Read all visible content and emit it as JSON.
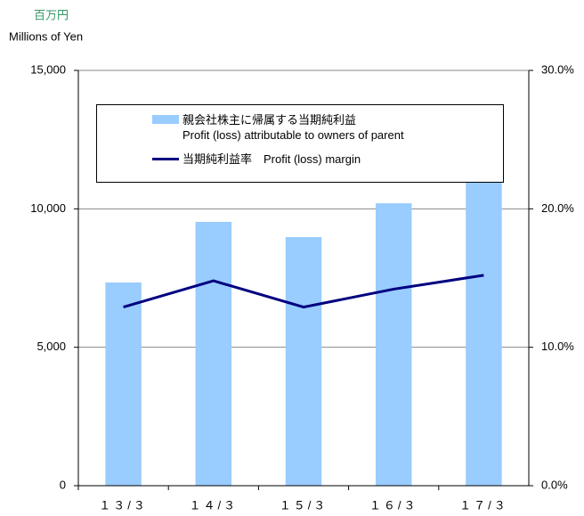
{
  "chart_data": {
    "type": "bar_line",
    "unit_label_ja": "百万円",
    "unit_label_en": "Millions of Yen",
    "categories": [
      "１３/３",
      "１４/３",
      "１５/３",
      "１６/３",
      "１７/３"
    ],
    "series": [
      {
        "name": "親会社株主に帰属する当期純利益\nProfit (loss) attributable to owners of parent",
        "type": "bar",
        "color": "#99ccff",
        "values": [
          7340,
          9530,
          8980,
          10200,
          11200
        ]
      },
      {
        "name": "当期純利益率　Profit (loss) margin",
        "type": "line",
        "axis": "y2",
        "color": "#000080",
        "values": [
          12.9,
          14.8,
          12.9,
          14.2,
          15.2
        ]
      }
    ],
    "ylim": [
      0,
      15000
    ],
    "yticks": [
      0,
      {
        "value": 5000,
        "label": "5,000"
      },
      {
        "value": 10000,
        "label": "10,000"
      },
      {
        "value": 15000,
        "label": "15,000"
      }
    ],
    "y2lim": [
      0,
      30
    ],
    "y2ticks": [
      {
        "value": 0,
        "label": "0.0%"
      },
      {
        "value": 10,
        "label": "10.0%"
      },
      {
        "value": 20,
        "label": "20.0%"
      },
      {
        "value": 30,
        "label": "30.0%"
      }
    ],
    "grid": true
  }
}
